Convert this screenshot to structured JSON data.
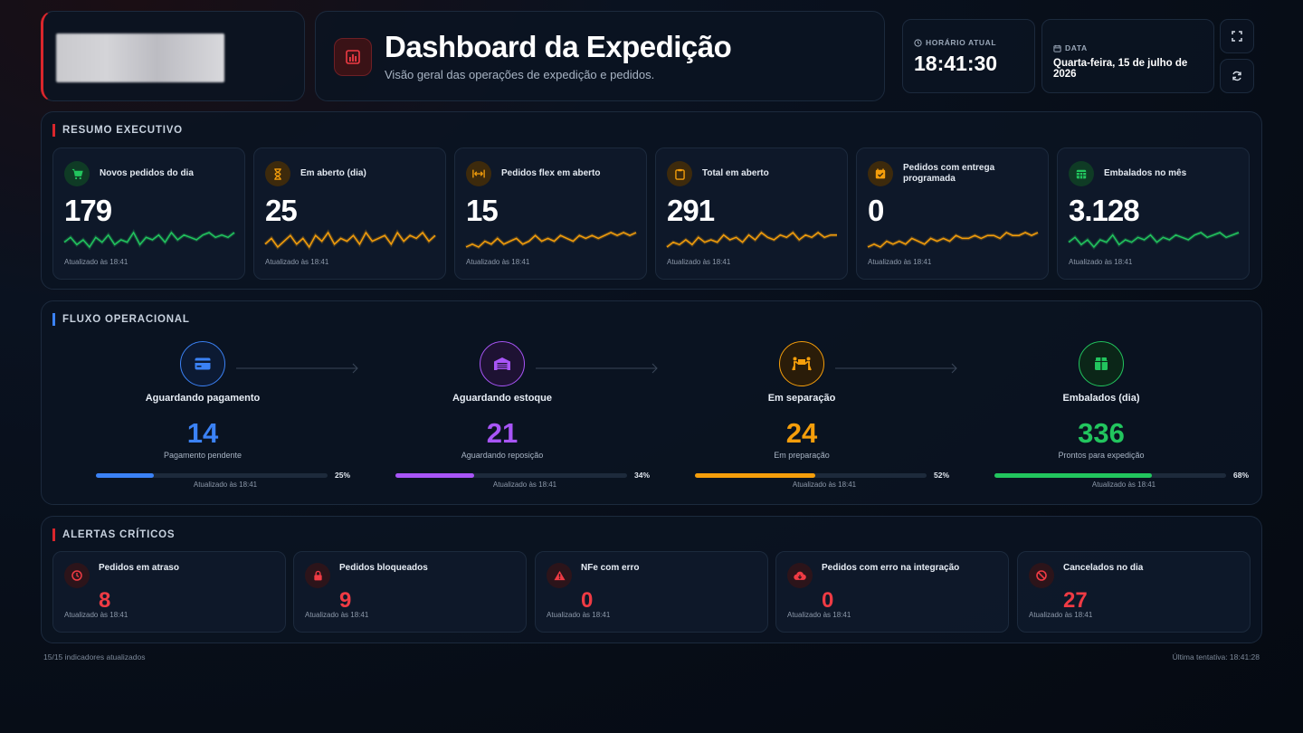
{
  "header": {
    "title": "Dashboard da Expedição",
    "subtitle": "Visão geral das operações de expedição e pedidos.",
    "clock_label": "HORÁRIO ATUAL",
    "clock_value": "18:41:30",
    "date_label": "DATA",
    "date_value": "Quarta-feira, 15 de julho de 2026"
  },
  "resumo": {
    "title": "RESUMO EXECUTIVO",
    "cards": [
      {
        "label": "Novos pedidos do dia",
        "value": "179",
        "updated": "Atualizado às 18:41",
        "color": "#22c55e",
        "icon": "cart-icon",
        "trend": [
          5,
          7,
          4,
          6,
          3,
          7,
          5,
          8,
          4,
          6,
          5,
          9,
          4,
          7,
          6,
          8,
          5,
          9,
          6,
          8,
          7,
          6,
          8,
          9,
          7,
          8,
          7,
          9
        ]
      },
      {
        "label": "Em aberto (dia)",
        "value": "25",
        "updated": "Atualizado às 18:41",
        "color": "#f59e0b",
        "icon": "hourglass-icon",
        "trend": [
          4,
          6,
          3,
          5,
          7,
          4,
          6,
          3,
          7,
          5,
          8,
          4,
          6,
          5,
          7,
          4,
          8,
          5,
          6,
          7,
          4,
          8,
          5,
          7,
          6,
          8,
          5,
          7
        ]
      },
      {
        "label": "Pedidos flex em aberto",
        "value": "15",
        "updated": "Atualizado às 18:41",
        "color": "#f59e0b",
        "icon": "arrows-horizontal-icon",
        "trend": [
          4,
          5,
          4,
          6,
          5,
          7,
          5,
          6,
          7,
          5,
          6,
          8,
          6,
          7,
          6,
          8,
          7,
          6,
          8,
          7,
          8,
          7,
          8,
          9,
          8,
          9,
          8,
          9
        ]
      },
      {
        "label": "Total em aberto",
        "value": "291",
        "updated": "Atualizado às 18:41",
        "color": "#f59e0b",
        "icon": "clipboard-icon",
        "trend": [
          3,
          5,
          4,
          6,
          4,
          7,
          5,
          6,
          5,
          8,
          6,
          7,
          5,
          8,
          6,
          9,
          7,
          6,
          8,
          7,
          9,
          6,
          8,
          7,
          9,
          7,
          8,
          8
        ]
      },
      {
        "label": "Pedidos com entrega programada",
        "value": "0",
        "updated": "Atualizado às 18:41",
        "color": "#f59e0b",
        "icon": "calendar-check-icon",
        "trend": [
          4,
          5,
          4,
          6,
          5,
          6,
          5,
          7,
          6,
          5,
          7,
          6,
          7,
          6,
          8,
          7,
          7,
          8,
          7,
          8,
          8,
          7,
          9,
          8,
          8,
          9,
          8,
          9
        ]
      },
      {
        "label": "Embalados no mês",
        "value": "3.128",
        "updated": "Atualizado às 18:41",
        "color": "#22c55e",
        "icon": "calendar-grid-icon",
        "trend": [
          5,
          7,
          4,
          6,
          3,
          6,
          5,
          8,
          4,
          6,
          5,
          7,
          6,
          8,
          5,
          7,
          6,
          8,
          7,
          6,
          8,
          9,
          7,
          8,
          9,
          7,
          8,
          9
        ]
      }
    ]
  },
  "fluxo": {
    "title": "FLUXO OPERACIONAL",
    "steps": [
      {
        "name": "Aguardando pagamento",
        "value": "14",
        "sub": "Pagamento pendente",
        "percent": 25,
        "percent_label": "25%",
        "updated": "Atualizado às 18:41",
        "color": "#3b82f6",
        "icon": "credit-card-icon"
      },
      {
        "name": "Aguardando estoque",
        "value": "21",
        "sub": "Aguardando reposição",
        "percent": 34,
        "percent_label": "34%",
        "updated": "Atualizado às 18:41",
        "color": "#a855f7",
        "icon": "warehouse-icon"
      },
      {
        "name": "Em separação",
        "value": "24",
        "sub": "Em preparação",
        "percent": 52,
        "percent_label": "52%",
        "updated": "Atualizado às 18:41",
        "color": "#f59e0b",
        "icon": "people-carry-box-icon"
      },
      {
        "name": "Embalados (dia)",
        "value": "336",
        "sub": "Prontos para expedição",
        "percent": 68,
        "percent_label": "68%",
        "updated": "Atualizado às 18:41",
        "color": "#22c55e",
        "icon": "box-icon"
      }
    ]
  },
  "alertas": {
    "title": "ALERTAS CRÍTICOS",
    "items": [
      {
        "label": "Pedidos em atraso",
        "value": "8",
        "updated": "Atualizado às 18:41",
        "icon": "clock-icon"
      },
      {
        "label": "Pedidos bloqueados",
        "value": "9",
        "updated": "Atualizado às 18:41",
        "icon": "lock-icon"
      },
      {
        "label": "NFe com erro",
        "value": "0",
        "updated": "Atualizado às 18:41",
        "icon": "warning-icon"
      },
      {
        "label": "Pedidos com erro na integração",
        "value": "0",
        "updated": "Atualizado às 18:41",
        "icon": "cloud-download-icon"
      },
      {
        "label": "Cancelados no dia",
        "value": "27",
        "updated": "Atualizado às 18:41",
        "icon": "ban-icon"
      }
    ]
  },
  "footer": {
    "left": "15/15 indicadores atualizados",
    "right": "Última tentativa: 18:41:28"
  },
  "colors": {
    "accent": "#d9262c",
    "alert": "#ef3b44"
  }
}
